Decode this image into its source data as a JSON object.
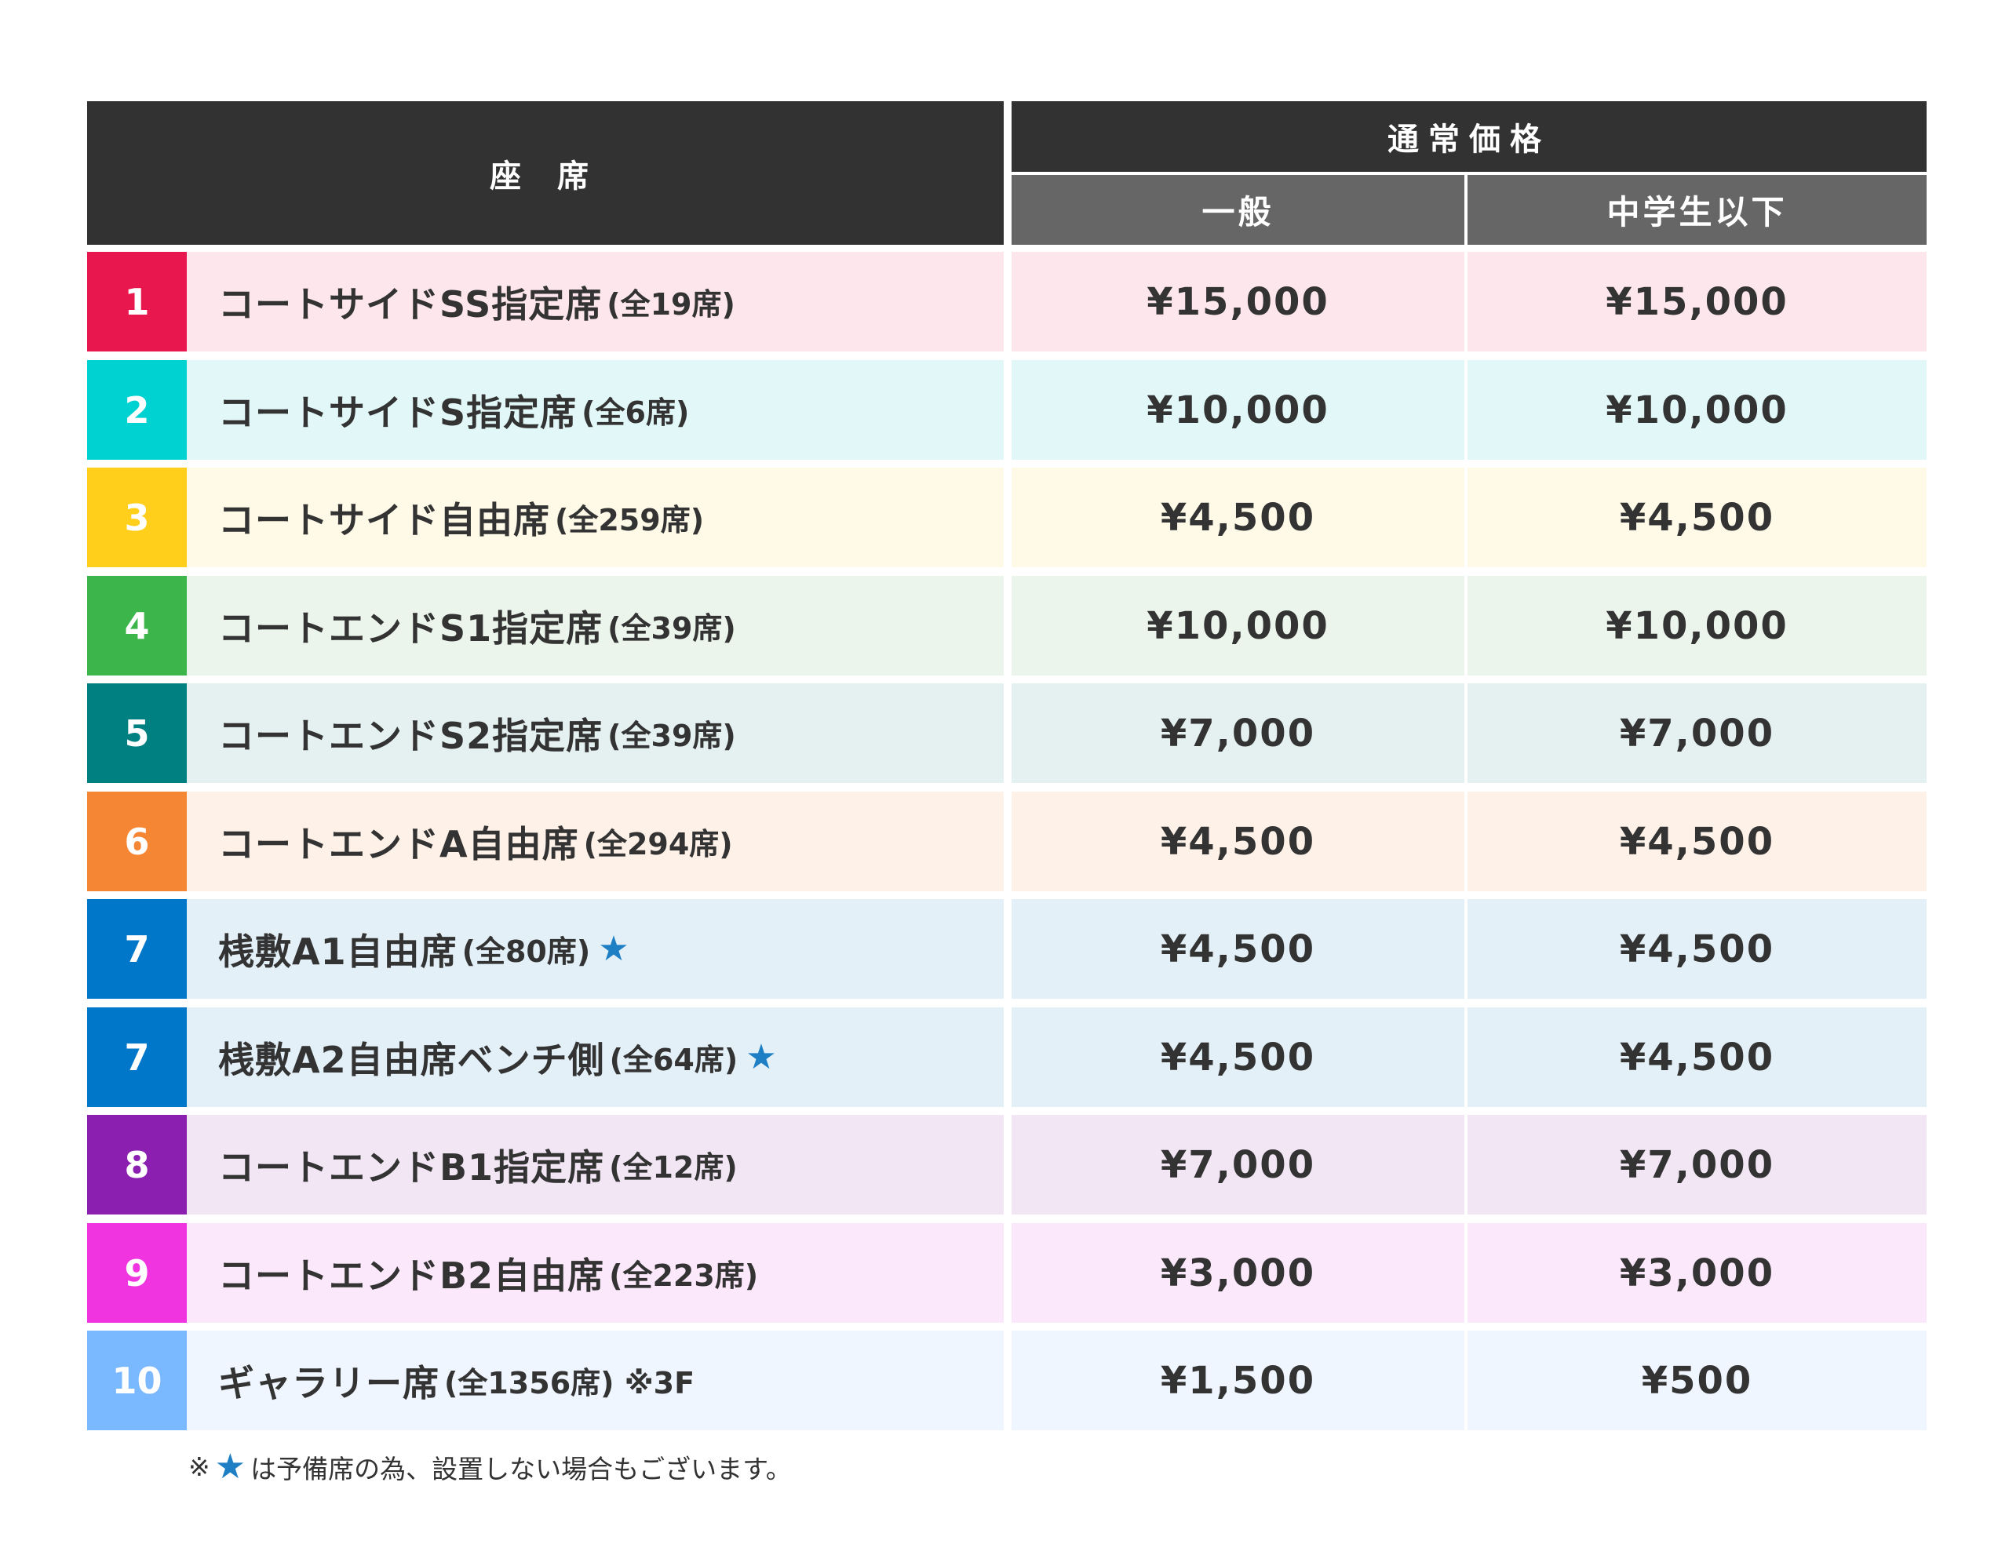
{
  "header": {
    "seat": "座 席",
    "price": "通常価格",
    "general": "一般",
    "junior": "中学生以下"
  },
  "colors": {
    "header_dark": "#323232",
    "header_sub": "#666666",
    "star": "#1e7fc4"
  },
  "rows": [
    {
      "num": "1",
      "name": "コートサイドSS指定席",
      "note": "(全19席)",
      "star": "",
      "general": "¥15,000",
      "junior": "¥15,000",
      "accent": "#e8174d",
      "bg": "#fde7ec"
    },
    {
      "num": "2",
      "name": "コートサイドS指定席",
      "note": "(全6席)",
      "star": "",
      "general": "¥10,000",
      "junior": "¥10,000",
      "accent": "#00d1d1",
      "bg": "#e2f8f8"
    },
    {
      "num": "3",
      "name": "コートサイド自由席",
      "note": "(全259席)",
      "star": "",
      "general": "¥4,500",
      "junior": "¥4,500",
      "accent": "#ffcf1c",
      "bg": "#fffae8"
    },
    {
      "num": "4",
      "name": "コートエンドS1指定席",
      "note": "(全39席)",
      "star": "",
      "general": "¥10,000",
      "junior": "¥10,000",
      "accent": "#3cb54a",
      "bg": "#ebf5ec"
    },
    {
      "num": "5",
      "name": "コートエンドS2指定席",
      "note": "(全39席)",
      "star": "",
      "general": "¥7,000",
      "junior": "¥7,000",
      "accent": "#008080",
      "bg": "#e5f1f0"
    },
    {
      "num": "6",
      "name": "コートエンドA自由席",
      "note": "(全294席)",
      "star": "",
      "general": "¥4,500",
      "junior": "¥4,500",
      "accent": "#f58634",
      "bg": "#fef1e8"
    },
    {
      "num": "7",
      "name": "桟敷A1自由席",
      "note": "(全80席)",
      "star": "★",
      "general": "¥4,500",
      "junior": "¥4,500",
      "accent": "#0077c8",
      "bg": "#e3f0f8"
    },
    {
      "num": "7",
      "name": "桟敷A2自由席ベンチ側",
      "note": "(全64席)",
      "star": "★",
      "general": "¥4,500",
      "junior": "¥4,500",
      "accent": "#0077c8",
      "bg": "#e3f0f8"
    },
    {
      "num": "8",
      "name": "コートエンドB1指定席",
      "note": "(全12席)",
      "star": "",
      "general": "¥7,000",
      "junior": "¥7,000",
      "accent": "#8a1fb0",
      "bg": "#f2e6f5"
    },
    {
      "num": "9",
      "name": "コートエンドB2自由席",
      "note": "(全223席)",
      "star": "",
      "general": "¥3,000",
      "junior": "¥3,000",
      "accent": "#f035e0",
      "bg": "#fce8fb"
    },
    {
      "num": "10",
      "name": "ギャラリー席",
      "note": "(全1356席) ※3F",
      "star": "",
      "general": "¥1,500",
      "junior": "¥500",
      "accent": "#7ab8ff",
      "bg": "#f0f6ff"
    }
  ],
  "footnote": {
    "prefix": "※",
    "star": "★",
    "text": "は予備席の為、設置しない場合もございます。"
  }
}
